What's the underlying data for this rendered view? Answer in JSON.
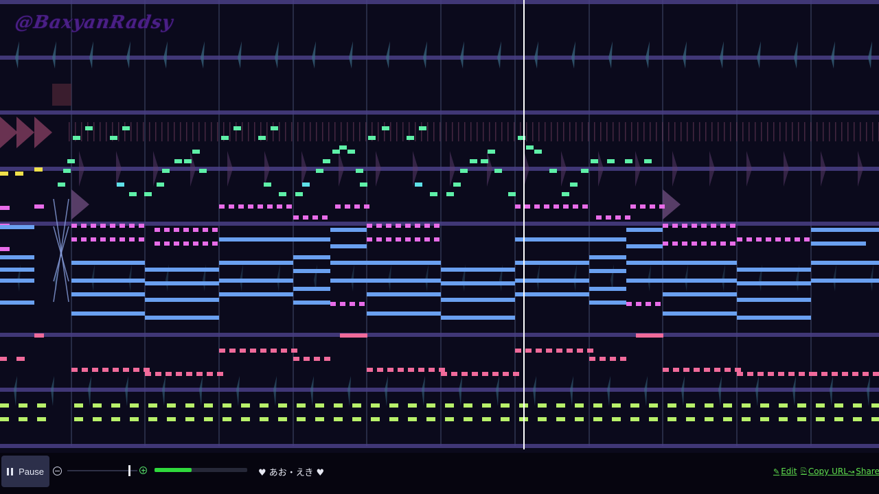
{
  "watermark": "@BaxyanRadsy",
  "controls": {
    "pause_label": "Pause",
    "zoom_level": 0.88,
    "volume_level": 0.4,
    "song_title": "♥ あお・えき ♥",
    "edit_label": "Edit",
    "copy_url_label": "Copy URL",
    "share_label": "Share"
  },
  "icons": {
    "pause": "pause-icon",
    "zoom_out": "zoom-out-icon",
    "zoom_in": "zoom-in-icon",
    "edit": "pencil-icon",
    "copy": "copy-icon",
    "share": "share-arrow-icon"
  },
  "colors": {
    "background": "#0b0a1c",
    "channel_line": "#4a3f86",
    "bar_line": "#2a2f4a",
    "playhead": "#ffffff",
    "drum_marker": "#3a6b86",
    "melody_green": "#5ef0a8",
    "melody_cyan": "#5ee0e8",
    "harmony_pink": "#e86ce8",
    "chord_blue": "#6aa0f0",
    "bass_pink": "#f06a9a",
    "perc_lime": "#b8f06a",
    "accent_yellow": "#f0e04a",
    "link_green": "#5fe04e"
  }
}
